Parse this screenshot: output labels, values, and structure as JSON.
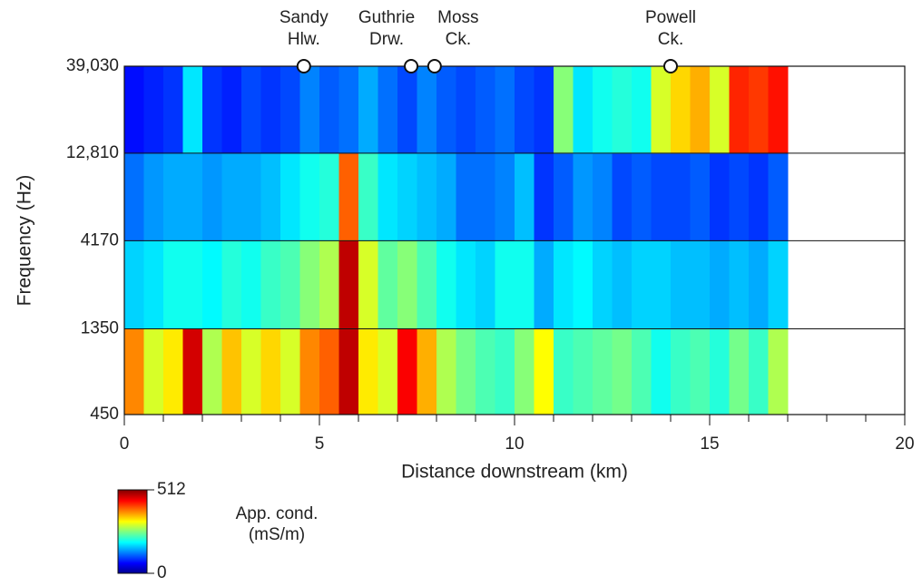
{
  "chart_data": {
    "type": "heatmap",
    "xlabel": "Distance downstream (km)",
    "ylabel": "Frequency (Hz)",
    "xlim": [
      0,
      20
    ],
    "xticks": [
      0,
      5,
      10,
      15,
      20
    ],
    "xminorticks": [
      1,
      2,
      3,
      4,
      6,
      7,
      8,
      9,
      11,
      12,
      13,
      14,
      16,
      17,
      18,
      19
    ],
    "ylim": [
      450,
      39030
    ],
    "ylog": true,
    "yticks": [
      450,
      1350,
      4170,
      {
        "value": 12810,
        "label": "12,810"
      },
      {
        "value": 39030,
        "label": "39,030"
      }
    ],
    "grid": true,
    "x_bins": [
      0,
      0.5,
      1,
      1.5,
      2,
      2.5,
      3,
      3.5,
      4,
      4.5,
      5,
      5.5,
      6,
      6.5,
      7,
      7.5,
      8,
      8.5,
      9,
      9.5,
      10,
      10.5,
      11,
      11.5,
      12,
      12.5,
      13,
      13.5,
      14,
      14.5,
      15,
      15.5,
      16,
      16.5,
      17
    ],
    "y_bins": [
      450,
      1350,
      4170,
      12810,
      39030
    ],
    "values": [
      [
        380,
        300,
        330,
        470,
        280,
        350,
        300,
        340,
        300,
        380,
        400,
        480,
        330,
        300,
        450,
        360,
        280,
        250,
        230,
        220,
        260,
        320,
        220,
        230,
        240,
        250,
        230,
        200,
        220,
        230,
        210,
        250,
        220,
        280
      ],
      [
        170,
        180,
        200,
        200,
        190,
        210,
        200,
        220,
        230,
        260,
        280,
        480,
        300,
        240,
        260,
        230,
        200,
        180,
        170,
        200,
        200,
        150,
        180,
        190,
        170,
        160,
        170,
        170,
        160,
        160,
        150,
        160,
        150,
        170
      ],
      [
        120,
        140,
        150,
        150,
        140,
        150,
        150,
        160,
        180,
        200,
        210,
        400,
        220,
        180,
        170,
        160,
        150,
        120,
        120,
        130,
        160,
        90,
        110,
        140,
        130,
        100,
        110,
        100,
        100,
        110,
        90,
        100,
        90,
        110
      ],
      [
        70,
        80,
        90,
        180,
        90,
        80,
        100,
        90,
        100,
        130,
        110,
        120,
        150,
        120,
        100,
        130,
        110,
        100,
        110,
        120,
        100,
        90,
        260,
        180,
        200,
        210,
        200,
        300,
        340,
        360,
        300,
        430,
        420,
        440
      ]
    ],
    "clim": [
      0,
      512
    ],
    "colorbar_ticks": [
      0,
      512
    ],
    "colorbar_label": [
      "App. cond.",
      "(mS/m)"
    ],
    "markers": [
      {
        "x": 4.6,
        "label": [
          "Sandy",
          "Hlw."
        ]
      },
      {
        "x": 7.35,
        "label": [
          "Guthrie",
          "Drw."
        ]
      },
      {
        "x": 7.95,
        "label": [
          "Moss",
          "Ck."
        ]
      },
      {
        "x": 14.0,
        "label": [
          "Powell",
          "Ck."
        ]
      }
    ]
  }
}
